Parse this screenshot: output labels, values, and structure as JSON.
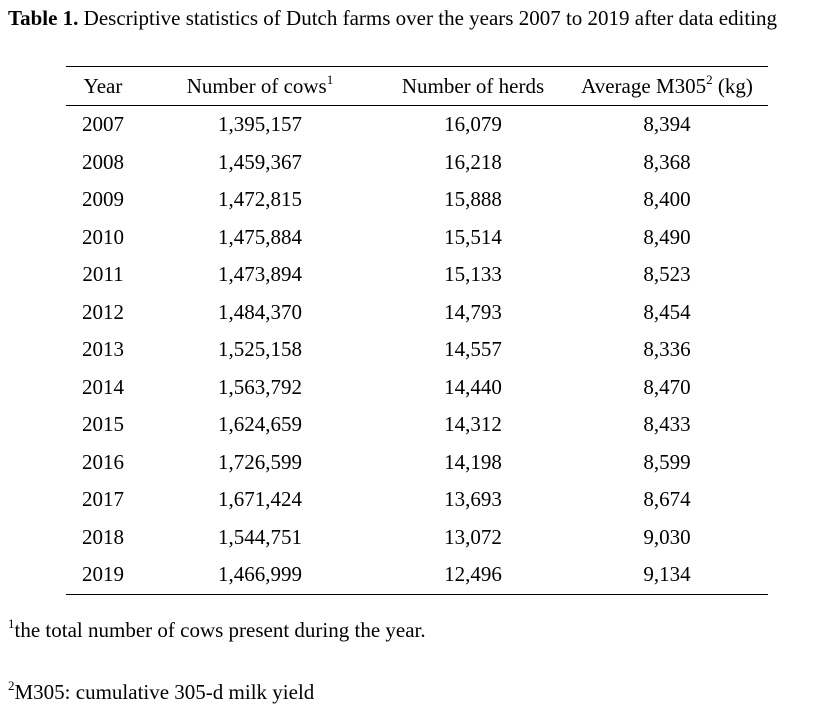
{
  "caption": {
    "label": "Table 1.",
    "text": " Descriptive statistics of Dutch farms over the years 2007 to 2019 after data editing"
  },
  "table": {
    "headers": {
      "year": "Year",
      "cows": "Number of cows",
      "cows_sup": "1",
      "herds": "Number of herds",
      "m305_pre": "Average M305",
      "m305_sup": "2",
      "m305_post": " (kg)"
    },
    "rows": [
      {
        "year": "2007",
        "cows": "1,395,157",
        "herds": "16,079",
        "m305": "8,394"
      },
      {
        "year": "2008",
        "cows": "1,459,367",
        "herds": "16,218",
        "m305": "8,368"
      },
      {
        "year": "2009",
        "cows": "1,472,815",
        "herds": "15,888",
        "m305": "8,400"
      },
      {
        "year": "2010",
        "cows": "1,475,884",
        "herds": "15,514",
        "m305": "8,490"
      },
      {
        "year": "2011",
        "cows": "1,473,894",
        "herds": "15,133",
        "m305": "8,523"
      },
      {
        "year": "2012",
        "cows": "1,484,370",
        "herds": "14,793",
        "m305": "8,454"
      },
      {
        "year": "2013",
        "cows": "1,525,158",
        "herds": "14,557",
        "m305": "8,336"
      },
      {
        "year": "2014",
        "cows": "1,563,792",
        "herds": "14,440",
        "m305": "8,470"
      },
      {
        "year": "2015",
        "cows": "1,624,659",
        "herds": "14,312",
        "m305": "8,433"
      },
      {
        "year": "2016",
        "cows": "1,726,599",
        "herds": "14,198",
        "m305": "8,599"
      },
      {
        "year": "2017",
        "cows": "1,671,424",
        "herds": "13,693",
        "m305": "8,674"
      },
      {
        "year": "2018",
        "cows": "1,544,751",
        "herds": "13,072",
        "m305": "9,030"
      },
      {
        "year": "2019",
        "cows": "1,466,999",
        "herds": "12,496",
        "m305": "9,134"
      }
    ]
  },
  "footnotes": {
    "fn1_sup": "1",
    "fn1_text": "the total number of cows present during the year.",
    "fn2_sup": "2",
    "fn2_text": "M305: cumulative 305-d milk yield"
  }
}
